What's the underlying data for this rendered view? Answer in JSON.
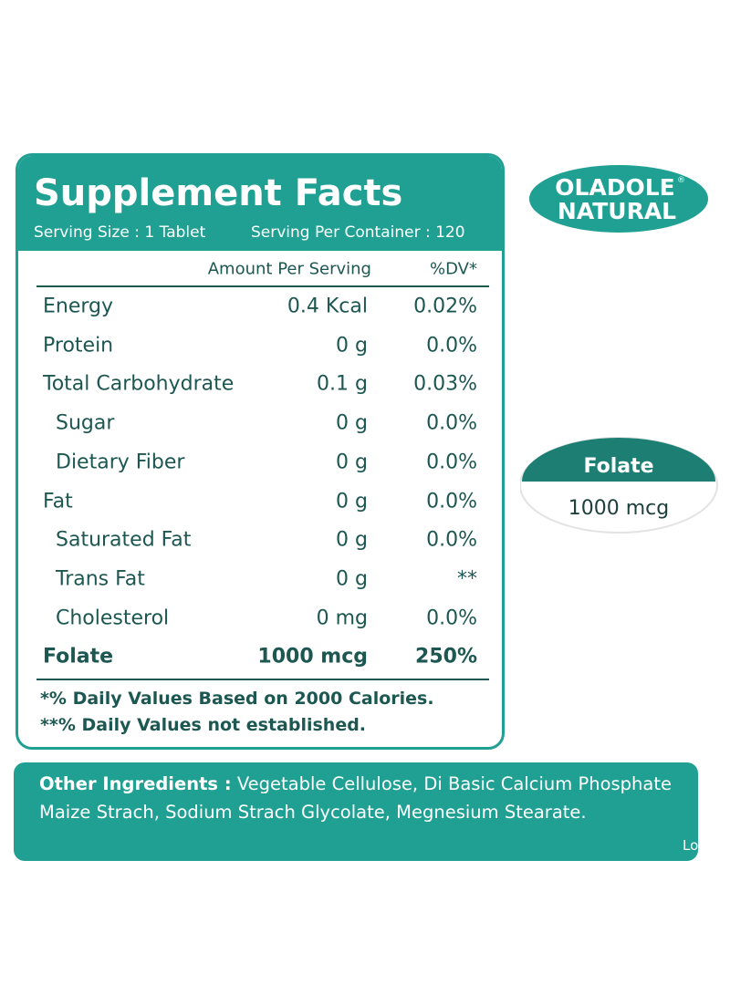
{
  "label": {
    "title": "Supplement Facts",
    "serving_size": "Serving Size : 1 Tablet",
    "servings_per_container": "Serving Per Container : 120",
    "columns": [
      "Amount Per Serving",
      "%DV*"
    ],
    "rows": [
      {
        "name": "Energy",
        "amount": "0.4 Kcal",
        "dv": "0.02%",
        "indent": false,
        "bold": false
      },
      {
        "name": "Protein",
        "amount": "0 g",
        "dv": "0.0%",
        "indent": false,
        "bold": false
      },
      {
        "name": "Total Carbohydrate",
        "amount": "0.1 g",
        "dv": "0.03%",
        "indent": false,
        "bold": false
      },
      {
        "name": "Sugar",
        "amount": "0 g",
        "dv": "0.0%",
        "indent": true,
        "bold": false
      },
      {
        "name": "Dietary Fiber",
        "amount": "0 g",
        "dv": "0.0%",
        "indent": true,
        "bold": false
      },
      {
        "name": "Fat",
        "amount": "0 g",
        "dv": "0.0%",
        "indent": false,
        "bold": false
      },
      {
        "name": "Saturated Fat",
        "amount": "0 g",
        "dv": "0.0%",
        "indent": true,
        "bold": false
      },
      {
        "name": "Trans Fat",
        "amount": "0 g",
        "dv": "**",
        "indent": true,
        "bold": false
      },
      {
        "name": "Cholesterol",
        "amount": "0 mg",
        "dv": "0.0%",
        "indent": true,
        "bold": false
      },
      {
        "name": "Folate",
        "amount": "1000 mcg",
        "dv": "250%",
        "indent": false,
        "bold": true
      }
    ],
    "footnotes": [
      "*% Daily Values Based on 2000 Calories.",
      "**% Daily Values not established."
    ]
  },
  "brand": {
    "line1": "OLADOLE",
    "line2": "NATURAL",
    "mark": "®"
  },
  "badge": {
    "name": "Folate",
    "amount": "1000 mcg"
  },
  "ingredients": {
    "heading": "Other Ingredients :",
    "text": "Vegetable Cellulose, Di Basic Calcium Phosphate Maize Strach, Sodium Strach Glycolate, Megnesium Stearate."
  },
  "overflow_text": "Lo"
}
